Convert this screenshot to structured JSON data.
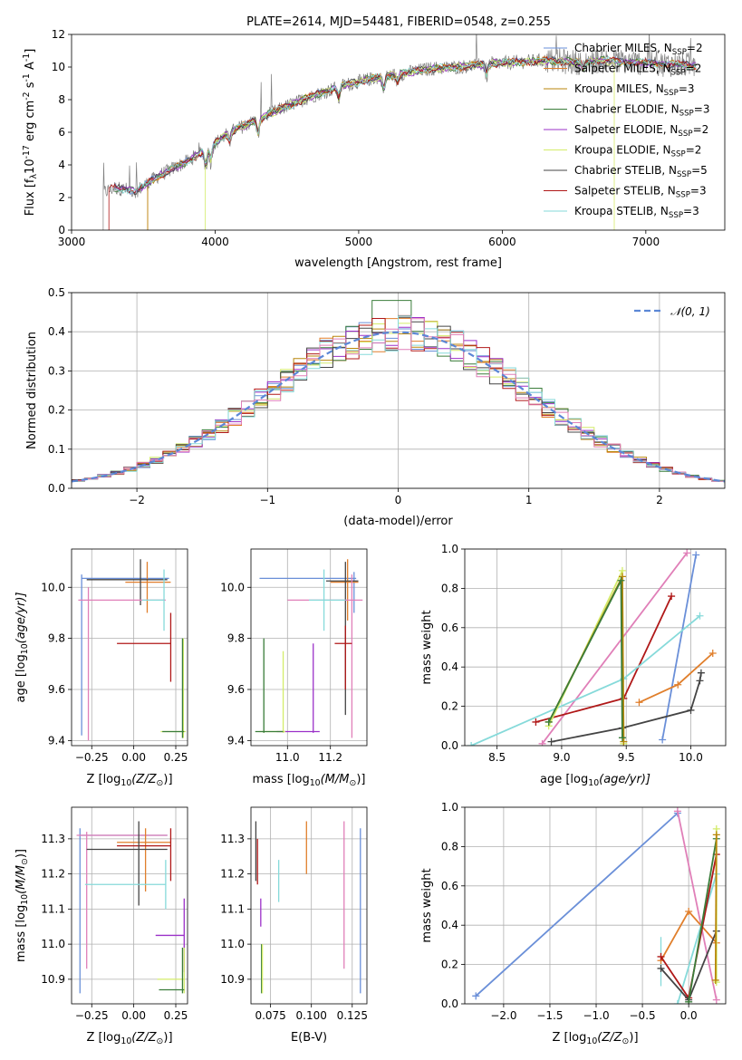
{
  "colors": {
    "Chabrier MILES": "#6a8fd8",
    "Salpeter MILES": "#e07f2c",
    "Kroupa MILES": "#b8860b",
    "Chabrier ELODIE": "#3a7d3a",
    "Salpeter ELODIE": "#9b30c8",
    "Kroupa ELODIE": "#d4ec6a",
    "Chabrier STELIB": "#444444",
    "Salpeter STELIB": "#b01818",
    "Kroupa STELIB": "#86dada",
    "pink": "#e07fb8",
    "spectrum": "#808080",
    "normal": "#5b87d6"
  },
  "chart_data": [
    {
      "id": "spectrum",
      "type": "line",
      "title": "PLATE=2614, MJD=54481, FIBERID=0548, z=0.255",
      "xlabel": "wavelength [Angstrom, rest frame]",
      "ylabel_parts": [
        "Flux [f",
        "λ",
        "10",
        "-17",
        " erg cm",
        "-2",
        " s",
        "-1",
        " A",
        "-1",
        "]"
      ],
      "xlim": [
        3000,
        7550
      ],
      "ylim": [
        0,
        12
      ],
      "xticks": [
        "3000",
        "4000",
        "5000",
        "6000",
        "7000"
      ],
      "yticks": [
        "0",
        "2",
        "4",
        "6",
        "8",
        "10",
        "12"
      ],
      "continuum": {
        "x": [
          3220,
          3300,
          3450,
          3600,
          3800,
          3950,
          4100,
          4300,
          4500,
          4700,
          4900,
          5100,
          5300,
          5500,
          5700,
          5900,
          6100,
          6300,
          6500,
          6700,
          6900,
          7100,
          7350
        ],
        "y": [
          2.3,
          2.6,
          2.4,
          3.3,
          4.2,
          5.0,
          6.0,
          6.8,
          7.6,
          8.3,
          8.9,
          9.3,
          9.6,
          9.9,
          10.0,
          10.2,
          10.3,
          10.4,
          10.3,
          10.4,
          10.3,
          10.2,
          10.1
        ]
      },
      "legend": [
        {
          "name": "Chabrier MILES",
          "nssp": "2"
        },
        {
          "name": "Salpeter MILES",
          "nssp": "2"
        },
        {
          "name": "Kroupa MILES",
          "nssp": "3"
        },
        {
          "name": "Chabrier ELODIE",
          "nssp": "3"
        },
        {
          "name": "Salpeter ELODIE",
          "nssp": "2"
        },
        {
          "name": "Kroupa ELODIE",
          "nssp": "2"
        },
        {
          "name": "Chabrier STELIB",
          "nssp": "5"
        },
        {
          "name": "Salpeter STELIB",
          "nssp": "3"
        },
        {
          "name": "Kroupa STELIB",
          "nssp": "3"
        }
      ],
      "nssp_label": ", N",
      "nssp_sub": "SSP"
    },
    {
      "id": "residuals",
      "type": "histogram",
      "xlabel": "(data-model)/error",
      "ylabel": "Normed distribution",
      "xlim": [
        -2.5,
        2.5
      ],
      "ylim": [
        0,
        0.5
      ],
      "xticks": [
        "−2",
        "−1",
        "0",
        "1",
        "2"
      ],
      "yticks": [
        "0.0",
        "0.1",
        "0.2",
        "0.3",
        "0.4",
        "0.5"
      ],
      "legend": "𝒩(0, 1)"
    },
    {
      "id": "age_vs_Z",
      "type": "errorbar",
      "xlabel_parts": [
        "Z [log",
        "10",
        "(Z/Z",
        "⊙",
        ")]"
      ],
      "ylabel_parts": [
        "age  [log",
        "10",
        "(age/yr)]"
      ],
      "xlim": [
        -0.37,
        0.32
      ],
      "ylim": [
        9.38,
        10.15
      ],
      "xticks": [
        {
          "v": -0.25,
          "t": "−0.25"
        },
        {
          "v": 0,
          "t": "0.00"
        },
        {
          "v": 0.25,
          "t": "0.25"
        }
      ],
      "yticks": [
        {
          "v": 9.4,
          "t": "9.4"
        },
        {
          "v": 9.6,
          "t": "9.6"
        },
        {
          "v": 9.8,
          "t": "9.8"
        },
        {
          "v": 10.0,
          "t": "10.0"
        }
      ],
      "bars": [
        {
          "c": "Chabrier MILES",
          "hx": [
            -0.31,
            0.21
          ],
          "hy": 10.035,
          "vx": -0.31,
          "vy": [
            9.42,
            10.05
          ]
        },
        {
          "c": "Salpeter MILES",
          "hx": [
            -0.05,
            0.22
          ],
          "hy": 10.02,
          "vx": 0.08,
          "vy": [
            9.9,
            10.1
          ]
        },
        {
          "c": "Chabrier STELIB",
          "hx": [
            -0.28,
            0.2
          ],
          "hy": 10.03,
          "vx": 0.04,
          "vy": [
            9.93,
            10.11
          ]
        },
        {
          "c": "pink",
          "hx": [
            -0.33,
            0.19
          ],
          "hy": 9.95,
          "vx": -0.27,
          "vy": [
            9.4,
            10.0
          ]
        },
        {
          "c": "Kroupa STELIB",
          "hx": [
            0.05,
            0.18
          ],
          "hy": 9.95,
          "vx": 0.18,
          "vy": [
            9.83,
            10.07
          ]
        },
        {
          "c": "Salpeter STELIB",
          "hx": [
            -0.1,
            0.22
          ],
          "hy": 9.78,
          "vx": 0.22,
          "vy": [
            9.63,
            9.9
          ]
        },
        {
          "c": "Kroupa ELODIE",
          "hx": [
            0.16,
            0.31
          ],
          "hy": 9.435,
          "vx": 0.295,
          "vy": [
            9.41,
            9.8
          ]
        },
        {
          "c": "Chabrier ELODIE",
          "hx": [
            0.17,
            0.3
          ],
          "hy": 9.435,
          "vx": 0.29,
          "vy": [
            9.41,
            9.8
          ]
        }
      ]
    },
    {
      "id": "age_vs_mass",
      "type": "errorbar",
      "xlabel_parts": [
        "mass [log",
        "10",
        "(M/M",
        "⊙",
        ")]"
      ],
      "ylabel_parts": [],
      "xlim": [
        10.83,
        11.37
      ],
      "ylim": [
        9.38,
        10.15
      ],
      "xticks": [
        {
          "v": 11.0,
          "t": "11.0"
        },
        {
          "v": 11.2,
          "t": "11.2"
        }
      ],
      "yticks": [
        {
          "v": 9.4,
          "t": "9.4"
        },
        {
          "v": 9.6,
          "t": "9.6"
        },
        {
          "v": 9.8,
          "t": "9.8"
        },
        {
          "v": 10.0,
          "t": "10.0"
        }
      ],
      "bars": [
        {
          "c": "Chabrier MILES",
          "hx": [
            10.87,
            11.32
          ],
          "hy": 10.035,
          "vx": 11.31,
          "vy": [
            9.9,
            10.06
          ]
        },
        {
          "c": "Salpeter MILES",
          "hx": [
            11.2,
            11.33
          ],
          "hy": 10.02,
          "vx": 11.28,
          "vy": [
            9.87,
            10.11
          ]
        },
        {
          "c": "Chabrier STELIB",
          "hx": [
            11.18,
            11.33
          ],
          "hy": 10.025,
          "vx": 11.27,
          "vy": [
            9.5,
            10.1
          ]
        },
        {
          "c": "pink",
          "hx": [
            11.0,
            11.35
          ],
          "hy": 9.95,
          "vx": 11.3,
          "vy": [
            9.41,
            10.05
          ]
        },
        {
          "c": "Kroupa STELIB",
          "hx": [
            11.1,
            11.27
          ],
          "hy": 9.95,
          "vx": 11.17,
          "vy": [
            9.83,
            10.07
          ]
        },
        {
          "c": "Salpeter STELIB",
          "hx": [
            11.22,
            11.3
          ],
          "hy": 9.78,
          "vx": 11.27,
          "vy": [
            9.6,
            9.85
          ]
        },
        {
          "c": "Salpeter ELODIE",
          "hx": [
            10.95,
            11.15
          ],
          "hy": 9.435,
          "vx": 11.12,
          "vy": [
            9.43,
            9.78
          ]
        },
        {
          "c": "Kroupa ELODIE",
          "hx": [
            10.87,
            10.99
          ],
          "hy": 9.435,
          "vx": 10.98,
          "vy": [
            9.43,
            9.75
          ]
        },
        {
          "c": "Chabrier ELODIE",
          "hx": [
            10.85,
            10.98
          ],
          "hy": 9.435,
          "vx": 10.89,
          "vy": [
            9.43,
            9.8
          ]
        }
      ]
    },
    {
      "id": "massweight_vs_age",
      "type": "line",
      "xlabel_parts": [
        "age  [log",
        "10",
        "(age/yr)]"
      ],
      "ylabel": "mass weight",
      "xlim": [
        8.25,
        10.27
      ],
      "ylim": [
        0,
        1.0
      ],
      "xticks": [
        {
          "v": 8.5,
          "t": "8.5"
        },
        {
          "v": 9.0,
          "t": "9.0"
        },
        {
          "v": 9.5,
          "t": "9.5"
        },
        {
          "v": 10.0,
          "t": "10.0"
        }
      ],
      "yticks": [
        {
          "v": 0,
          "t": "0.0"
        },
        {
          "v": 0.2,
          "t": "0.2"
        },
        {
          "v": 0.4,
          "t": "0.4"
        },
        {
          "v": 0.6,
          "t": "0.6"
        },
        {
          "v": 0.8,
          "t": "0.8"
        },
        {
          "v": 1.0,
          "t": "1.0"
        }
      ],
      "series": [
        {
          "c": "Chabrier MILES",
          "x": [
            9.78,
            10.04
          ],
          "y": [
            0.03,
            0.97
          ]
        },
        {
          "c": "pink",
          "x": [
            8.85,
            9.97
          ],
          "y": [
            0.01,
            0.98
          ]
        },
        {
          "c": "Salpeter STELIB",
          "x": [
            8.8,
            9.48,
            9.85
          ],
          "y": [
            0.12,
            0.24,
            0.76
          ]
        },
        {
          "c": "Kroupa STELIB",
          "x": [
            8.3,
            9.48,
            10.07
          ],
          "y": [
            0.0,
            0.34,
            0.66
          ]
        },
        {
          "c": "Salpeter MILES",
          "x": [
            9.6,
            9.9,
            10.17
          ],
          "y": [
            0.22,
            0.31,
            0.47
          ]
        },
        {
          "c": "Chabrier STELIB",
          "x": [
            8.92,
            9.47,
            10.0,
            10.07,
            10.08
          ],
          "y": [
            0.02,
            0.09,
            0.18,
            0.33,
            0.37
          ]
        },
        {
          "c": "Kroupa ELODIE",
          "x": [
            8.9,
            9.47,
            9.48
          ],
          "y": [
            0.1,
            0.89,
            0.01
          ]
        },
        {
          "c": "Kroupa MILES",
          "x": [
            8.9,
            9.47,
            9.48
          ],
          "y": [
            0.12,
            0.86,
            0.02
          ]
        },
        {
          "c": "Chabrier ELODIE",
          "x": [
            8.9,
            9.46,
            9.47
          ],
          "y": [
            0.12,
            0.84,
            0.04
          ]
        }
      ]
    },
    {
      "id": "mass_vs_Z",
      "type": "errorbar",
      "xlabel_parts": [
        "Z [log",
        "10",
        "(Z/Z",
        "⊙",
        ")]"
      ],
      "ylabel_parts": [
        "mass [log",
        "10",
        "(M/M",
        "⊙",
        ")]"
      ],
      "xlim": [
        -0.37,
        0.32
      ],
      "ylim": [
        10.83,
        11.39
      ],
      "xticks": [
        {
          "v": -0.25,
          "t": "−0.25"
        },
        {
          "v": 0,
          "t": "0.00"
        },
        {
          "v": 0.25,
          "t": "0.25"
        }
      ],
      "yticks": [
        {
          "v": 10.9,
          "t": "10.9"
        },
        {
          "v": 11.0,
          "t": "11.0"
        },
        {
          "v": 11.1,
          "t": "11.1"
        },
        {
          "v": 11.2,
          "t": "11.2"
        },
        {
          "v": 11.3,
          "t": "11.3"
        }
      ],
      "bars": [
        {
          "c": "Chabrier MILES",
          "hx": [
            -0.32,
            0.2
          ],
          "hy": 11.31,
          "vx": -0.32,
          "vy": [
            10.86,
            11.33
          ]
        },
        {
          "c": "pink",
          "hx": [
            -0.34,
            0.2
          ],
          "hy": 11.31,
          "vx": -0.28,
          "vy": [
            10.93,
            11.32
          ]
        },
        {
          "c": "Salpeter MILES",
          "hx": [
            -0.1,
            0.22
          ],
          "hy": 11.29,
          "vx": 0.07,
          "vy": [
            11.15,
            11.33
          ]
        },
        {
          "c": "Salpeter STELIB",
          "hx": [
            -0.1,
            0.22
          ],
          "hy": 11.28,
          "vx": 0.22,
          "vy": [
            11.18,
            11.33
          ]
        },
        {
          "c": "Chabrier STELIB",
          "hx": [
            -0.28,
            0.2
          ],
          "hy": 11.27,
          "vx": 0.03,
          "vy": [
            11.11,
            11.35
          ]
        },
        {
          "c": "Kroupa STELIB",
          "hx": [
            -0.29,
            0.19
          ],
          "hy": 11.17,
          "vx": 0.19,
          "vy": [
            11.1,
            11.24
          ]
        },
        {
          "c": "Salpeter ELODIE",
          "hx": [
            0.13,
            0.3
          ],
          "hy": 11.025,
          "vx": 0.3,
          "vy": [
            10.92,
            11.13
          ]
        },
        {
          "c": "Kroupa ELODIE",
          "hx": [
            0.14,
            0.3
          ],
          "hy": 10.9,
          "vx": 0.3,
          "vy": [
            10.86,
            10.99
          ]
        },
        {
          "c": "Chabrier ELODIE",
          "hx": [
            0.15,
            0.3
          ],
          "hy": 10.87,
          "vx": 0.29,
          "vy": [
            10.86,
            10.99
          ]
        }
      ]
    },
    {
      "id": "mass_vs_EBV",
      "type": "errorbar",
      "xlabel": "E(B-V)",
      "ylabel_parts": [],
      "xlim": [
        0.063,
        0.134
      ],
      "ylim": [
        10.83,
        11.39
      ],
      "xticks": [
        {
          "v": 0.075,
          "t": "0.075"
        },
        {
          "v": 0.1,
          "t": "0.100"
        },
        {
          "v": 0.125,
          "t": "0.125"
        }
      ],
      "yticks": [
        {
          "v": 10.9,
          "t": "10.9"
        },
        {
          "v": 11.0,
          "t": "11.0"
        },
        {
          "v": 11.1,
          "t": "11.1"
        },
        {
          "v": 11.2,
          "t": "11.2"
        },
        {
          "v": 11.3,
          "t": "11.3"
        }
      ],
      "bars": [
        {
          "c": "Chabrier STELIB",
          "vx": 0.066,
          "vy": [
            11.18,
            11.35
          ]
        },
        {
          "c": "Salpeter STELIB",
          "vx": 0.067,
          "vy": [
            11.17,
            11.3
          ]
        },
        {
          "c": "Salpeter ELODIE",
          "vx": 0.069,
          "vy": [
            11.05,
            11.13
          ]
        },
        {
          "c": "Chabrier ELODIE",
          "vx": 0.0695,
          "vy": [
            10.86,
            11.0
          ]
        },
        {
          "c": "Kroupa ELODIE",
          "vx": 0.07,
          "vy": [
            10.86,
            11.0
          ]
        },
        {
          "c": "Kroupa STELIB",
          "vx": 0.08,
          "vy": [
            11.12,
            11.24
          ]
        },
        {
          "c": "Salpeter MILES",
          "vx": 0.097,
          "vy": [
            11.2,
            11.35
          ]
        },
        {
          "c": "pink",
          "vx": 0.12,
          "vy": [
            10.93,
            11.35
          ]
        },
        {
          "c": "Chabrier MILES",
          "vx": 0.13,
          "vy": [
            10.86,
            11.33
          ]
        }
      ]
    },
    {
      "id": "massweight_vs_Z",
      "type": "line",
      "xlabel_parts": [
        "Z [log",
        "10",
        "(Z/Z",
        "⊙",
        ")]"
      ],
      "ylabel": "mass weight",
      "xlim": [
        -2.42,
        0.4
      ],
      "ylim": [
        0,
        1.0
      ],
      "xticks": [
        {
          "v": -2.0,
          "t": "−2.0"
        },
        {
          "v": -1.5,
          "t": "−1.5"
        },
        {
          "v": -1.0,
          "t": "−1.0"
        },
        {
          "v": -0.5,
          "t": "−0.5"
        },
        {
          "v": 0.0,
          "t": "0.0"
        }
      ],
      "yticks": [
        {
          "v": 0,
          "t": "0.0"
        },
        {
          "v": 0.2,
          "t": "0.2"
        },
        {
          "v": 0.4,
          "t": "0.4"
        },
        {
          "v": 0.6,
          "t": "0.6"
        },
        {
          "v": 0.8,
          "t": "0.8"
        },
        {
          "v": 1.0,
          "t": "1.0"
        }
      ],
      "series": [
        {
          "c": "Chabrier MILES",
          "x": [
            -2.3,
            -0.12
          ],
          "y": [
            0.04,
            0.97
          ]
        },
        {
          "c": "pink",
          "x": [
            -0.12,
            0.3
          ],
          "y": [
            0.98,
            0.02
          ]
        },
        {
          "c": "Kroupa STELIB",
          "x": [
            -0.12,
            0.3
          ],
          "y": [
            0.0,
            0.66
          ]
        },
        {
          "c": "Salpeter MILES",
          "x": [
            -0.3,
            0.0,
            0.3
          ],
          "y": [
            0.22,
            0.47,
            0.31
          ]
        },
        {
          "c": "Salpeter STELIB",
          "x": [
            -0.3,
            0.0,
            0.3
          ],
          "y": [
            0.24,
            0.03,
            0.76
          ]
        },
        {
          "c": "Chabrier STELIB",
          "x": [
            -0.3,
            0.0,
            0.3
          ],
          "y": [
            0.18,
            0.02,
            0.37
          ]
        },
        {
          "c": "Chabrier ELODIE",
          "x": [
            0.0,
            0.3
          ],
          "y": [
            0.01,
            0.84
          ]
        },
        {
          "c": "Kroupa ELODIE",
          "x": [
            0.3,
            0.3
          ],
          "y": [
            0.11,
            0.89
          ]
        },
        {
          "c": "Kroupa MILES",
          "x": [
            0.29,
            0.3
          ],
          "y": [
            0.12,
            0.86
          ]
        }
      ],
      "vbars": [
        {
          "c": "Kroupa STELIB",
          "vx": -0.3,
          "vy": [
            0.09,
            0.34
          ]
        },
        {
          "c": "Kroupa ELODIE",
          "vx": 0.3,
          "vy": [
            0.11,
            0.89
          ]
        }
      ]
    }
  ]
}
